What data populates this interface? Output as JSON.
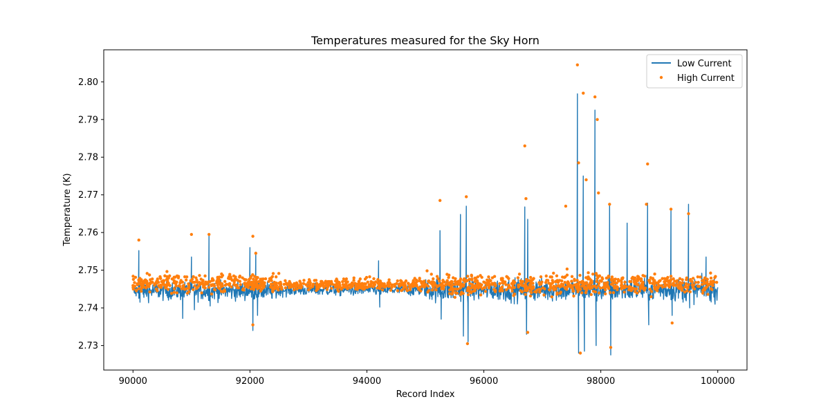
{
  "chart_data": {
    "type": "line+scatter",
    "title": "Temperatures measured for the Sky Horn",
    "xlabel": "Record Index",
    "ylabel": "Temperature (K)",
    "xlim": [
      89500,
      100500
    ],
    "ylim": [
      2.7235,
      2.8085
    ],
    "xticks": [
      90000,
      92000,
      94000,
      96000,
      98000,
      100000
    ],
    "xtick_labels": [
      "90000",
      "92000",
      "94000",
      "96000",
      "98000",
      "100000"
    ],
    "yticks": [
      2.73,
      2.74,
      2.75,
      2.76,
      2.77,
      2.78,
      2.79,
      2.8
    ],
    "ytick_labels": [
      "2.73",
      "2.74",
      "2.75",
      "2.76",
      "2.77",
      "2.78",
      "2.79",
      "2.80"
    ],
    "legend_position": "top-right",
    "baseline": {
      "x_range": [
        90000,
        100000
      ],
      "segments": [
        {
          "x_start": 90000,
          "x_end": 92500,
          "low_current_mean": 2.7445,
          "high_current_mean": 2.7465,
          "spread": 0.0012
        },
        {
          "x_start": 92500,
          "x_end": 95000,
          "low_current_mean": 2.7448,
          "high_current_mean": 2.7462,
          "spread": 0.0008
        },
        {
          "x_start": 95000,
          "x_end": 100000,
          "low_current_mean": 2.7448,
          "high_current_mean": 2.7462,
          "spread": 0.0015
        }
      ]
    },
    "series": [
      {
        "name": "Low Current",
        "style": "line",
        "color": "#1f77b4",
        "excursions": [
          {
            "x": 90100,
            "y": 2.7552
          },
          {
            "x": 90120,
            "y": 2.7415
          },
          {
            "x": 90850,
            "y": 2.7372
          },
          {
            "x": 91000,
            "y": 2.7535
          },
          {
            "x": 91050,
            "y": 2.7395
          },
          {
            "x": 91300,
            "y": 2.7592
          },
          {
            "x": 91320,
            "y": 2.7405
          },
          {
            "x": 92000,
            "y": 2.756
          },
          {
            "x": 92050,
            "y": 2.734
          },
          {
            "x": 92100,
            "y": 2.7548
          },
          {
            "x": 92130,
            "y": 2.738
          },
          {
            "x": 94200,
            "y": 2.7525
          },
          {
            "x": 94220,
            "y": 2.7402
          },
          {
            "x": 95250,
            "y": 2.7605
          },
          {
            "x": 95270,
            "y": 2.737
          },
          {
            "x": 95600,
            "y": 2.7648
          },
          {
            "x": 95650,
            "y": 2.7325
          },
          {
            "x": 95700,
            "y": 2.767
          },
          {
            "x": 95730,
            "y": 2.731
          },
          {
            "x": 96700,
            "y": 2.7668
          },
          {
            "x": 96730,
            "y": 2.733
          },
          {
            "x": 96750,
            "y": 2.7635
          },
          {
            "x": 97600,
            "y": 2.7968
          },
          {
            "x": 97620,
            "y": 2.728
          },
          {
            "x": 97700,
            "y": 2.775
          },
          {
            "x": 97720,
            "y": 2.7285
          },
          {
            "x": 97900,
            "y": 2.7925
          },
          {
            "x": 97920,
            "y": 2.73
          },
          {
            "x": 98150,
            "y": 2.7675
          },
          {
            "x": 98170,
            "y": 2.7275
          },
          {
            "x": 98450,
            "y": 2.7625
          },
          {
            "x": 98800,
            "y": 2.7678
          },
          {
            "x": 98820,
            "y": 2.7355
          },
          {
            "x": 99200,
            "y": 2.7658
          },
          {
            "x": 99220,
            "y": 2.738
          },
          {
            "x": 99500,
            "y": 2.7675
          },
          {
            "x": 99520,
            "y": 2.74
          },
          {
            "x": 99800,
            "y": 2.7535
          }
        ]
      },
      {
        "name": "High Current",
        "style": "scatter",
        "color": "#ff7f0e",
        "excursions": [
          {
            "x": 90100,
            "y": 2.758
          },
          {
            "x": 91000,
            "y": 2.7595
          },
          {
            "x": 91300,
            "y": 2.7595
          },
          {
            "x": 92050,
            "y": 2.759
          },
          {
            "x": 92050,
            "y": 2.7355
          },
          {
            "x": 92100,
            "y": 2.7545
          },
          {
            "x": 95250,
            "y": 2.7685
          },
          {
            "x": 95700,
            "y": 2.7695
          },
          {
            "x": 95720,
            "y": 2.7305
          },
          {
            "x": 96700,
            "y": 2.783
          },
          {
            "x": 96720,
            "y": 2.769
          },
          {
            "x": 96750,
            "y": 2.7335
          },
          {
            "x": 97400,
            "y": 2.767
          },
          {
            "x": 97600,
            "y": 2.8045
          },
          {
            "x": 97620,
            "y": 2.7785
          },
          {
            "x": 97650,
            "y": 2.728
          },
          {
            "x": 97700,
            "y": 2.797
          },
          {
            "x": 97750,
            "y": 2.774
          },
          {
            "x": 97900,
            "y": 2.796
          },
          {
            "x": 97940,
            "y": 2.79
          },
          {
            "x": 97960,
            "y": 2.7705
          },
          {
            "x": 98150,
            "y": 2.7675
          },
          {
            "x": 98170,
            "y": 2.7295
          },
          {
            "x": 98800,
            "y": 2.7782
          },
          {
            "x": 98780,
            "y": 2.7675
          },
          {
            "x": 99200,
            "y": 2.7662
          },
          {
            "x": 99220,
            "y": 2.736
          },
          {
            "x": 99500,
            "y": 2.765
          }
        ]
      }
    ]
  }
}
